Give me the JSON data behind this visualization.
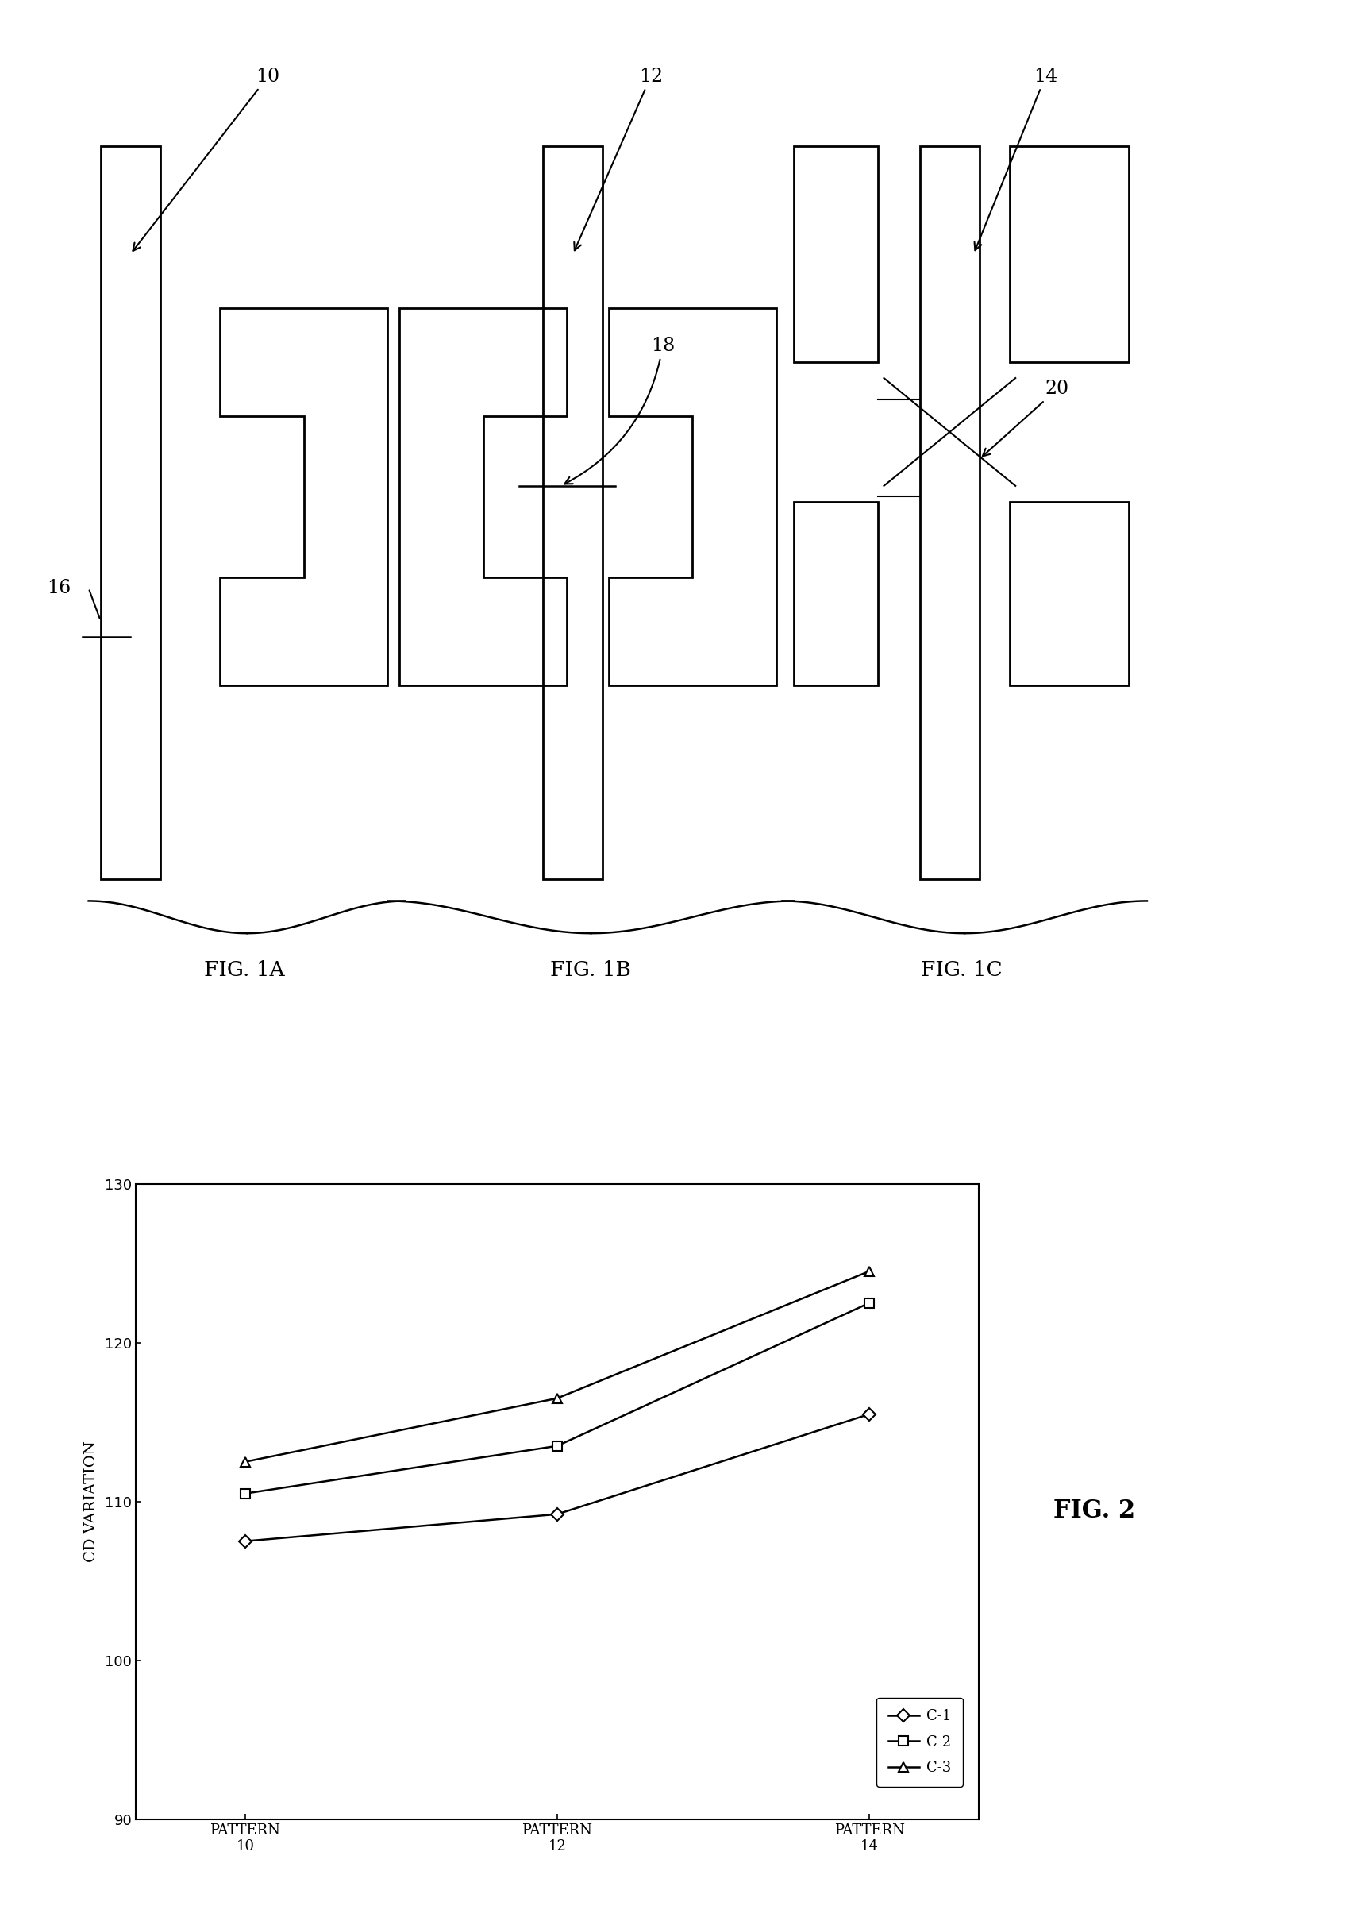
{
  "fig_width": 17.12,
  "fig_height": 24.24,
  "background_color": "#ffffff",
  "chart": {
    "x": [
      0,
      1,
      2
    ],
    "x_labels": [
      "PATTERN\n10",
      "PATTERN\n12",
      "PATTERN\n14"
    ],
    "c1": [
      107.5,
      109.2,
      115.5
    ],
    "c2": [
      110.5,
      113.5,
      122.5
    ],
    "c3": [
      112.5,
      116.5,
      124.5
    ],
    "ylim": [
      90,
      130
    ],
    "yticks": [
      90,
      100,
      110,
      120,
      130
    ],
    "ylabel": "CD VARIATION",
    "fig2_label": "FIG. 2"
  },
  "top": {
    "fig1a_label": "FIG. 1A",
    "fig1b_label": "FIG. 1B",
    "fig1c_label": "FIG. 1C",
    "label_10": "10",
    "label_12": "12",
    "label_14": "14",
    "label_16": "16",
    "label_18": "18",
    "label_20": "20"
  }
}
